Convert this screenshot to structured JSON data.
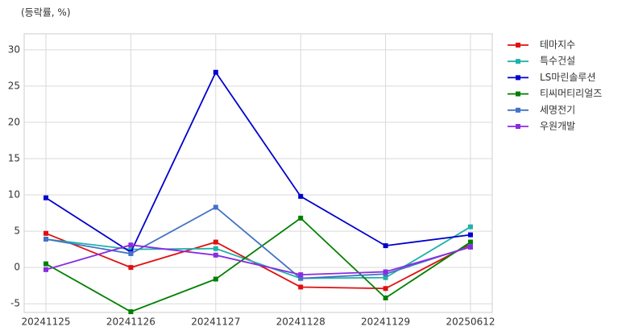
{
  "chart_data": {
    "type": "line",
    "annotation": "(등락률, %)",
    "categories": [
      "20241125",
      "20241126",
      "20241127",
      "20241128",
      "20241129",
      "20250612"
    ],
    "series": [
      {
        "name": "테마지수",
        "color": "#e01010",
        "values": [
          4.7,
          0,
          3.5,
          -2.7,
          -2.9,
          3.2
        ]
      },
      {
        "name": "특수건설",
        "color": "#20b2aa",
        "values": [
          3.9,
          2.5,
          2.6,
          -1.5,
          -1.4,
          5.6
        ]
      },
      {
        "name": "LS마린솔루션",
        "color": "#0000cd",
        "values": [
          9.6,
          2.1,
          26.9,
          9.8,
          3.0,
          4.5
        ]
      },
      {
        "name": "티씨머티리얼즈",
        "color": "#008000",
        "values": [
          0.5,
          -6.1,
          -1.6,
          6.8,
          -4.2,
          3.5
        ]
      },
      {
        "name": "세명전기",
        "color": "#4472c4",
        "values": [
          3.9,
          1.9,
          8.3,
          -1.5,
          -0.9,
          2.9
        ]
      },
      {
        "name": "우원개발",
        "color": "#8a2be2",
        "values": [
          -0.3,
          3.1,
          1.7,
          -1.0,
          -0.6,
          2.8
        ]
      }
    ],
    "ylim": [
      -6.2,
      32.2
    ],
    "yticks": [
      -5,
      0,
      5,
      10,
      15,
      20,
      25,
      30
    ],
    "grid": true,
    "legend": "right"
  }
}
